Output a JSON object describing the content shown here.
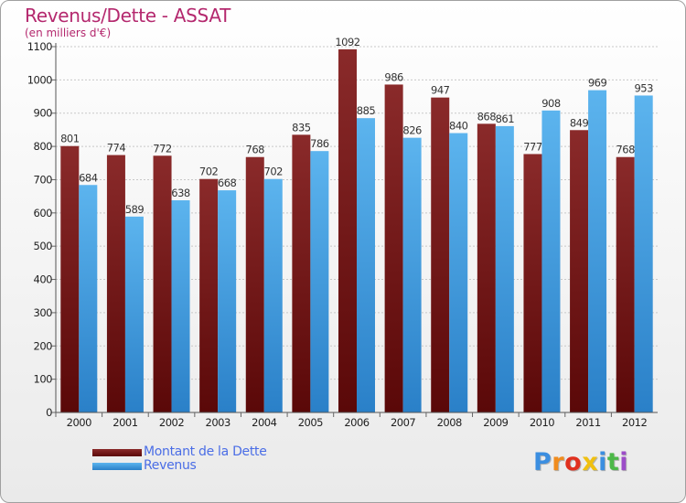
{
  "chart_data": {
    "type": "bar",
    "title": "Revenus/Dette - ASSAT",
    "subtitle": "(en milliers d'€)",
    "categories": [
      "2000",
      "2001",
      "2002",
      "2003",
      "2004",
      "2005",
      "2006",
      "2007",
      "2008",
      "2009",
      "2010",
      "2011",
      "2012"
    ],
    "series": [
      {
        "name": "Montant de la Dette",
        "color": "#7a1a1a",
        "values": [
          801,
          774,
          772,
          702,
          768,
          835,
          1092,
          986,
          947,
          868,
          777,
          849,
          768
        ]
      },
      {
        "name": "Revenus",
        "color": "#4aa8e8",
        "values": [
          684,
          589,
          638,
          668,
          702,
          786,
          885,
          826,
          840,
          861,
          908,
          969,
          953
        ]
      }
    ],
    "ylim": [
      0,
      1100
    ],
    "yticks": [
      0,
      100,
      200,
      300,
      400,
      500,
      600,
      700,
      800,
      900,
      1000,
      1100
    ],
    "grid": true,
    "legend_position": "bottom-left",
    "data_labels": true
  },
  "logo": {
    "letters": [
      "P",
      "r",
      "o",
      "x",
      "i",
      "t",
      "i"
    ],
    "colors": [
      "#3b8ee0",
      "#f08c1e",
      "#e0301e",
      "#f0c010",
      "#3b8ee0",
      "#4cb848",
      "#9c4cc8"
    ]
  }
}
